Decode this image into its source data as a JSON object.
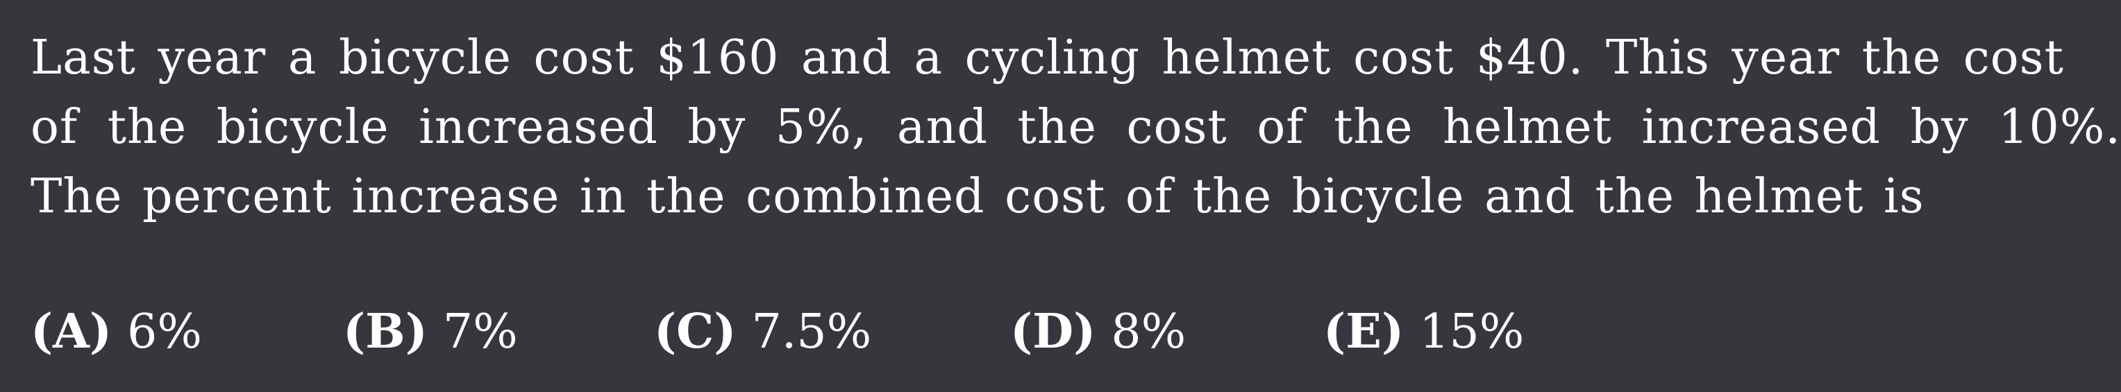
{
  "problem": {
    "lines": [
      "Last year a bicycle cost $160 and a cycling helmet cost $40. This year the cost",
      "of the bicycle increased by 5%, and the cost of the helmet increased by 10%.",
      "The percent increase in the combined cost of the bicycle and the helmet is"
    ]
  },
  "choices": [
    {
      "letter": "(A)",
      "value": "6%"
    },
    {
      "letter": "(B)",
      "value": "7%"
    },
    {
      "letter": "(C)",
      "value": "7.5%"
    },
    {
      "letter": "(D)",
      "value": "8%"
    },
    {
      "letter": "(E)",
      "value": "15%"
    }
  ],
  "colors": {
    "background": "#35373c",
    "text": "#ffffff"
  }
}
